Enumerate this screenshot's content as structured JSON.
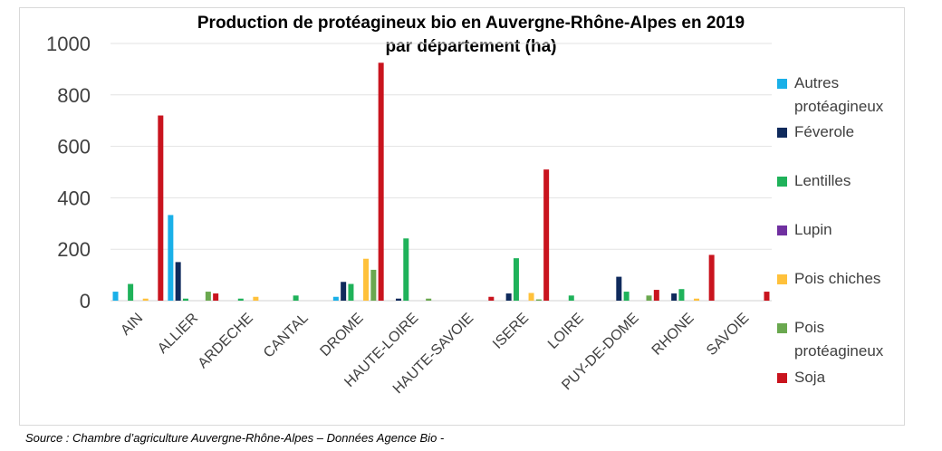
{
  "chart_data": {
    "type": "bar",
    "title": "Production de protéagineux bio en Auvergne-Rhône-Alpes en 2019",
    "subtitle": "par département (ha)",
    "xlabel": "",
    "ylabel": "",
    "ylim": [
      0,
      1000
    ],
    "yticks": [
      "0",
      "200",
      "400",
      "600",
      "800",
      "1000"
    ],
    "grid": true,
    "legend_position": "right",
    "categories": [
      "AIN",
      "ALLIER",
      "ARDECHE",
      "CANTAL",
      "DROME",
      "HAUTE-LOIRE",
      "HAUTE-SAVOIE",
      "ISERE",
      "LOIRE",
      "PUY-DE-DOME",
      "RHONE",
      "SAVOIE"
    ],
    "series": [
      {
        "name": "Autres protéagineux",
        "color": "#1ab0e8",
        "values": [
          35,
          333,
          0,
          0,
          15,
          0,
          0,
          0,
          0,
          0,
          0,
          0
        ]
      },
      {
        "name": "Féverole",
        "color": "#0f2a5c",
        "values": [
          0,
          150,
          0,
          0,
          73,
          8,
          0,
          28,
          0,
          93,
          28,
          0
        ]
      },
      {
        "name": "Lentilles",
        "color": "#1fb25a",
        "values": [
          65,
          8,
          8,
          20,
          65,
          242,
          0,
          165,
          20,
          35,
          45,
          0
        ]
      },
      {
        "name": "Lupin",
        "color": "#7030a0",
        "values": [
          0,
          0,
          0,
          0,
          0,
          0,
          0,
          0,
          0,
          0,
          0,
          0
        ]
      },
      {
        "name": "Pois chiches",
        "color": "#ffc13b",
        "values": [
          8,
          0,
          15,
          0,
          163,
          0,
          0,
          30,
          0,
          0,
          8,
          0
        ]
      },
      {
        "name": "Pois protéagineux",
        "color": "#6aa84f",
        "values": [
          0,
          35,
          0,
          0,
          120,
          8,
          0,
          5,
          0,
          20,
          0,
          0
        ]
      },
      {
        "name": "Soja",
        "color": "#c9141e",
        "values": [
          720,
          28,
          0,
          0,
          925,
          0,
          15,
          510,
          0,
          42,
          178,
          35
        ]
      }
    ]
  },
  "legend": [
    {
      "lines": [
        "Autres",
        "protéagineux"
      ],
      "color": "#1ab0e8"
    },
    {
      "lines": [
        "Féverole"
      ],
      "color": "#0f2a5c"
    },
    {
      "lines": [
        "Lentilles"
      ],
      "color": "#1fb25a"
    },
    {
      "lines": [
        "Lupin"
      ],
      "color": "#7030a0"
    },
    {
      "lines": [
        "Pois chiches"
      ],
      "color": "#ffc13b"
    },
    {
      "lines": [
        "Pois",
        "protéagineux"
      ],
      "color": "#6aa84f"
    },
    {
      "lines": [
        "Soja"
      ],
      "color": "#c9141e"
    }
  ],
  "source": "Source : Chambre d’agriculture Auvergne-Rhône-Alpes – Données Agence Bio -"
}
